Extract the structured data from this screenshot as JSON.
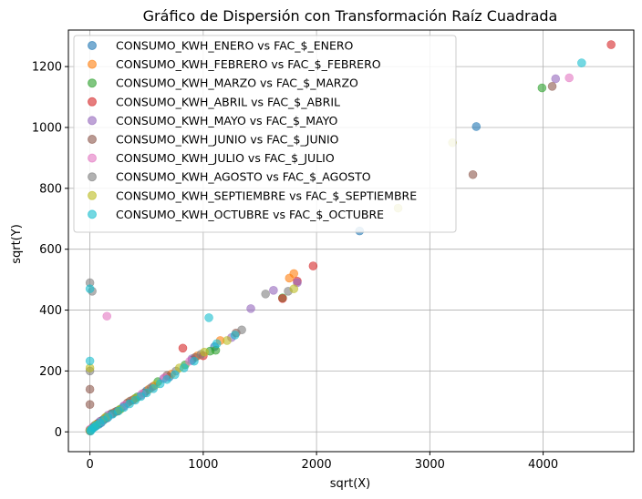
{
  "chart_data": {
    "type": "scatter",
    "title": "Gráfico de Dispersión con Transformación Raíz Cuadrada",
    "xlabel": "sqrt(X)",
    "ylabel": "sqrt(Y)",
    "xlim": [
      -190,
      4800
    ],
    "ylim": [
      -65,
      1320
    ],
    "xticks": [
      0,
      1000,
      2000,
      3000,
      4000
    ],
    "yticks": [
      0,
      200,
      400,
      600,
      800,
      1000,
      1200
    ],
    "grid": true,
    "legend_position": "top-left",
    "series": [
      {
        "name": "CONSUMO_KWH_ENERO vs FAC_$_ENERO",
        "color": "#1f77b4",
        "points": [
          [
            0,
            5
          ],
          [
            10,
            8
          ],
          [
            20,
            10
          ],
          [
            30,
            15
          ],
          [
            50,
            18
          ],
          [
            80,
            25
          ],
          [
            100,
            30
          ],
          [
            150,
            45
          ],
          [
            200,
            60
          ],
          [
            250,
            70
          ],
          [
            300,
            85
          ],
          [
            400,
            110
          ],
          [
            500,
            135
          ],
          [
            700,
            180
          ],
          [
            900,
            235
          ],
          [
            1100,
            280
          ],
          [
            2380,
            660
          ],
          [
            3410,
            1003
          ]
        ]
      },
      {
        "name": "CONSUMO_KWH_FEBRERO vs FAC_$_FEBRERO",
        "color": "#ff7f0e",
        "points": [
          [
            0,
            3
          ],
          [
            20,
            12
          ],
          [
            60,
            25
          ],
          [
            120,
            40
          ],
          [
            220,
            65
          ],
          [
            350,
            100
          ],
          [
            520,
            140
          ],
          [
            720,
            190
          ],
          [
            950,
            250
          ],
          [
            1150,
            300
          ],
          [
            1760,
            505
          ],
          [
            1800,
            520
          ]
        ]
      },
      {
        "name": "CONSUMO_KWH_MARZO vs FAC_$_MARZO",
        "color": "#2ca02c",
        "points": [
          [
            0,
            6
          ],
          [
            30,
            14
          ],
          [
            80,
            30
          ],
          [
            150,
            50
          ],
          [
            270,
            75
          ],
          [
            420,
            115
          ],
          [
            600,
            165
          ],
          [
            840,
            220
          ],
          [
            1060,
            265
          ],
          [
            1110,
            268
          ],
          [
            1700,
            440
          ],
          [
            3990,
            1130
          ]
        ]
      },
      {
        "name": "CONSUMO_KWH_ABRIL vs FAC_$_ABRIL",
        "color": "#d62728",
        "points": [
          [
            0,
            4
          ],
          [
            25,
            15
          ],
          [
            70,
            28
          ],
          [
            130,
            42
          ],
          [
            240,
            68
          ],
          [
            380,
            105
          ],
          [
            560,
            150
          ],
          [
            820,
            275
          ],
          [
            1000,
            250
          ],
          [
            1700,
            438
          ],
          [
            1830,
            495
          ],
          [
            1970,
            545
          ],
          [
            4600,
            1272
          ]
        ]
      },
      {
        "name": "CONSUMO_KWH_MAYO vs FAC_$_MAYO",
        "color": "#9467bd",
        "points": [
          [
            0,
            7
          ],
          [
            15,
            10
          ],
          [
            90,
            35
          ],
          [
            160,
            55
          ],
          [
            300,
            85
          ],
          [
            450,
            120
          ],
          [
            650,
            175
          ],
          [
            900,
            240
          ],
          [
            1250,
            310
          ],
          [
            1420,
            405
          ],
          [
            1620,
            465
          ],
          [
            1830,
            490
          ],
          [
            4110,
            1160
          ]
        ]
      },
      {
        "name": "CONSUMO_KWH_JUNIO vs FAC_$_JUNIO",
        "color": "#8c564b",
        "points": [
          [
            0,
            90
          ],
          [
            0,
            140
          ],
          [
            40,
            20
          ],
          [
            110,
            38
          ],
          [
            190,
            60
          ],
          [
            330,
            95
          ],
          [
            480,
            128
          ],
          [
            680,
            185
          ],
          [
            930,
            245
          ],
          [
            1290,
            325
          ],
          [
            3380,
            845
          ],
          [
            4080,
            1135
          ]
        ]
      },
      {
        "name": "CONSUMO_KWH_JULIO vs FAC_$_JULIO",
        "color": "#e377c2",
        "points": [
          [
            0,
            8
          ],
          [
            35,
            18
          ],
          [
            100,
            33
          ],
          [
            170,
            52
          ],
          [
            150,
            380
          ],
          [
            310,
            88
          ],
          [
            460,
            125
          ],
          [
            660,
            178
          ],
          [
            880,
            232
          ],
          [
            4230,
            1163
          ]
        ]
      },
      {
        "name": "CONSUMO_KWH_AGOSTO vs FAC_$_AGOSTO",
        "color": "#7f7f7f",
        "points": [
          [
            0,
            490
          ],
          [
            0,
            200
          ],
          [
            20,
            462
          ],
          [
            45,
            22
          ],
          [
            130,
            45
          ],
          [
            230,
            67
          ],
          [
            360,
            102
          ],
          [
            540,
            145
          ],
          [
            760,
            200
          ],
          [
            980,
            255
          ],
          [
            1340,
            335
          ],
          [
            1550,
            453
          ],
          [
            1750,
            462
          ]
        ]
      },
      {
        "name": "CONSUMO_KWH_SEPTIEMBRE vs FAC_$_SEPTIEMBRE",
        "color": "#bcbd22",
        "points": [
          [
            0,
            210
          ],
          [
            0,
            5
          ],
          [
            55,
            24
          ],
          [
            140,
            48
          ],
          [
            260,
            72
          ],
          [
            400,
            110
          ],
          [
            580,
            155
          ],
          [
            790,
            210
          ],
          [
            1010,
            262
          ],
          [
            1210,
            300
          ],
          [
            1800,
            470
          ],
          [
            3200,
            950
          ],
          [
            2720,
            735
          ]
        ]
      },
      {
        "name": "CONSUMO_KWH_OCTUBRE vs FAC_$_OCTUBRE",
        "color": "#17becf",
        "points": [
          [
            0,
            233
          ],
          [
            0,
            470
          ],
          [
            5,
            2
          ],
          [
            10,
            6
          ],
          [
            25,
            12
          ],
          [
            40,
            16
          ],
          [
            60,
            22
          ],
          [
            90,
            30
          ],
          [
            120,
            38
          ],
          [
            160,
            48
          ],
          [
            200,
            58
          ],
          [
            250,
            68
          ],
          [
            300,
            80
          ],
          [
            350,
            92
          ],
          [
            400,
            104
          ],
          [
            450,
            116
          ],
          [
            500,
            128
          ],
          [
            560,
            142
          ],
          [
            620,
            158
          ],
          [
            680,
            172
          ],
          [
            750,
            188
          ],
          [
            830,
            210
          ],
          [
            920,
            232
          ],
          [
            1050,
            375
          ],
          [
            1120,
            290
          ],
          [
            1280,
            318
          ],
          [
            4340,
            1212
          ]
        ]
      }
    ]
  }
}
